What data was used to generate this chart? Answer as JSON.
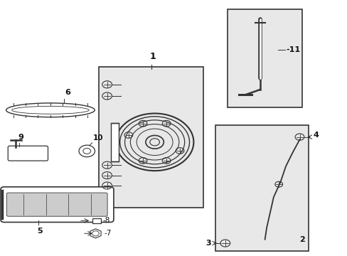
{
  "bg_color": "#ffffff",
  "box_fill": "#e8e8e8",
  "line_color": "#333333",
  "text_color": "#111111"
}
